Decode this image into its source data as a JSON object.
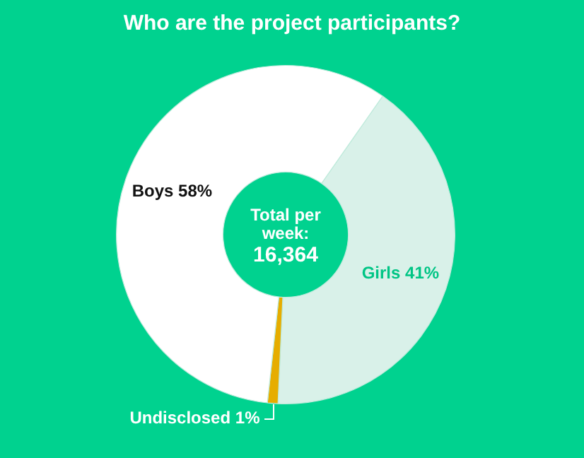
{
  "chart_data": {
    "type": "donut",
    "title": "Who are the project participants?",
    "categories": [
      "Girls",
      "Undisclosed",
      "Boys"
    ],
    "values": [
      41,
      1,
      58
    ],
    "colors": [
      "#d9f1e9",
      "#e6ad00",
      "#ffffff"
    ],
    "annotations": [
      "Total per week:",
      "16,364"
    ],
    "value_labels": [
      "41%",
      "1%",
      "58%"
    ],
    "legend": false
  }
}
